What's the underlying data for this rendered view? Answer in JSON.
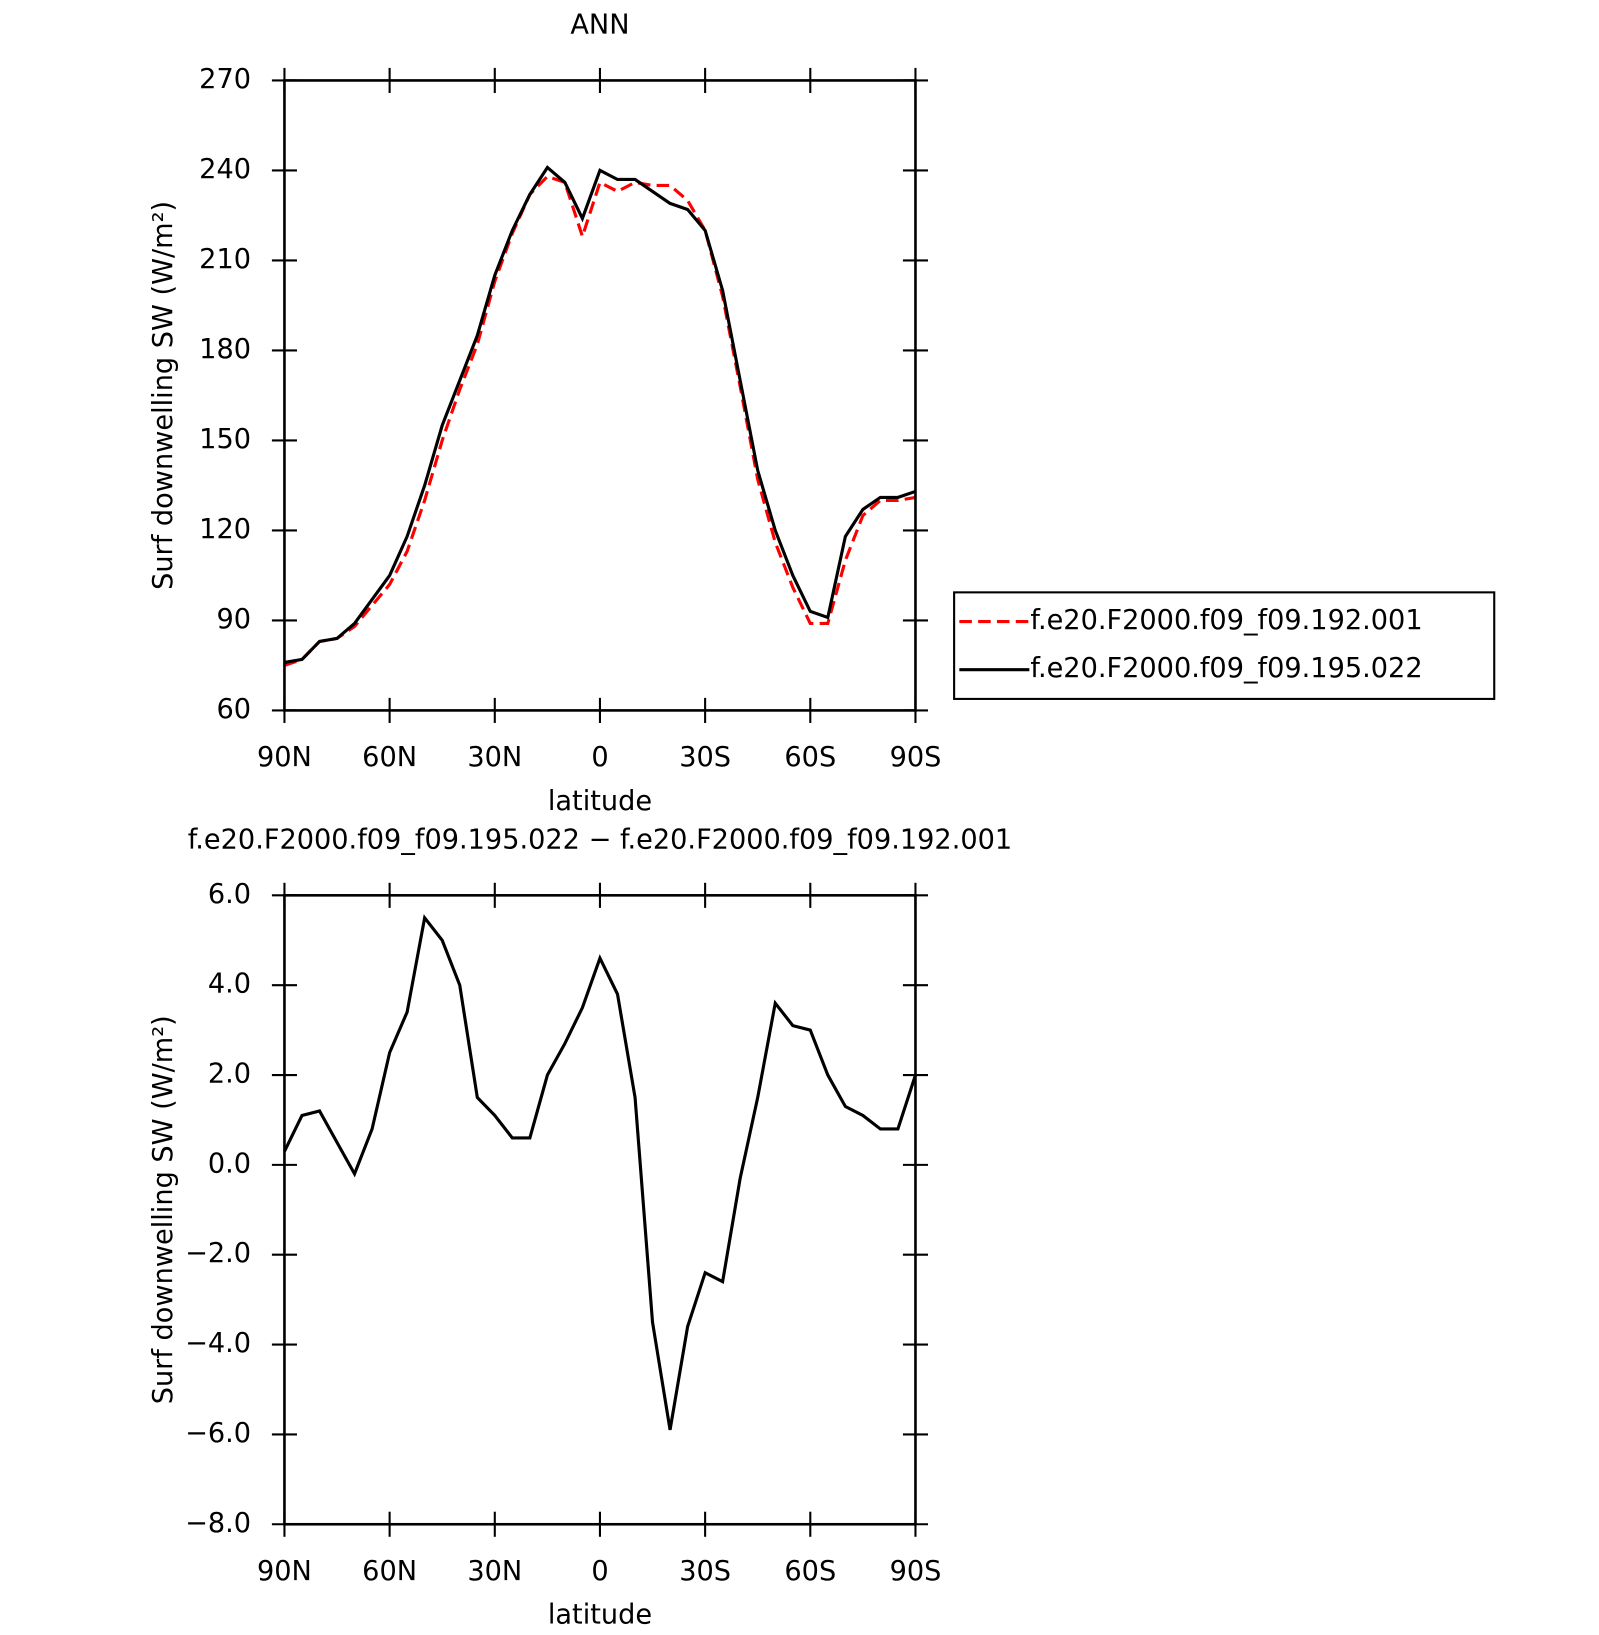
{
  "chart_data": [
    {
      "type": "line",
      "title": "ANN",
      "xlabel": "latitude",
      "ylabel": "Surf downwelling SW (W/m²)",
      "x": [
        90,
        85,
        80,
        75,
        70,
        65,
        60,
        55,
        50,
        45,
        40,
        35,
        30,
        25,
        20,
        15,
        10,
        5,
        0,
        -5,
        -10,
        -15,
        -20,
        -25,
        -30,
        -35,
        -40,
        -45,
        -50,
        -55,
        -60,
        -65,
        -70,
        -75,
        -80,
        -85,
        -90
      ],
      "series": [
        {
          "name": "f.e20.F2000.f09_f09.192.001",
          "color": "#ff0000",
          "dash": true,
          "values": [
            75,
            77,
            83,
            84,
            88,
            95,
            102,
            113,
            130,
            150,
            167,
            182,
            203,
            219,
            232,
            238,
            236,
            218,
            236,
            233,
            236,
            235,
            235,
            230,
            220,
            198,
            168,
            137,
            116,
            101,
            89,
            89,
            110,
            125,
            130,
            130,
            131
          ]
        },
        {
          "name": "f.e20.F2000.f09_f09.195.022",
          "color": "#000000",
          "dash": false,
          "values": [
            76,
            77,
            83,
            84,
            89,
            97,
            105,
            118,
            135,
            155,
            170,
            185,
            205,
            220,
            232,
            241,
            236,
            224,
            240,
            237,
            237,
            233,
            229,
            227,
            220,
            200,
            170,
            140,
            120,
            105,
            93,
            91,
            118,
            127,
            131,
            131,
            133
          ]
        }
      ],
      "xlim": [
        90,
        -90
      ],
      "xticks": [
        {
          "value": 90,
          "label": "90N"
        },
        {
          "value": 60,
          "label": "60N"
        },
        {
          "value": 30,
          "label": "30N"
        },
        0,
        {
          "value": -30,
          "label": "30S"
        },
        {
          "value": -60,
          "label": "60S"
        },
        {
          "value": -90,
          "label": "90S"
        }
      ],
      "ylim": [
        60,
        270
      ],
      "yticks": [
        60,
        90,
        120,
        150,
        180,
        210,
        240,
        270
      ],
      "legend": "right"
    },
    {
      "type": "line",
      "title": "f.e20.F2000.f09_f09.195.022 − f.e20.F2000.f09_f09.192.001",
      "xlabel": "latitude",
      "ylabel": "Surf downwelling SW (W/m²)",
      "x": [
        90,
        85,
        80,
        75,
        70,
        65,
        60,
        55,
        50,
        45,
        40,
        35,
        30,
        25,
        20,
        15,
        10,
        5,
        0,
        -5,
        -10,
        -15,
        -20,
        -25,
        -30,
        -35,
        -40,
        -45,
        -50,
        -55,
        -60,
        -65,
        -70,
        -75,
        -80,
        -85,
        -90
      ],
      "series": [
        {
          "color": "#000000",
          "dash": false,
          "values": [
            0.3,
            1.1,
            1.2,
            0.5,
            -0.2,
            0.8,
            2.5,
            3.4,
            5.5,
            5.0,
            4.0,
            1.5,
            1.1,
            0.6,
            0.6,
            2.0,
            2.7,
            3.5,
            4.6,
            3.8,
            1.5,
            -3.5,
            -5.9,
            -3.6,
            -2.4,
            -2.6,
            -0.3,
            1.5,
            3.6,
            3.1,
            3.0,
            2.0,
            1.3,
            1.1,
            0.8,
            0.8,
            2.0
          ]
        }
      ],
      "xlim": [
        90,
        -90
      ],
      "xticks": [
        {
          "value": 90,
          "label": "90N"
        },
        {
          "value": 60,
          "label": "60N"
        },
        {
          "value": 30,
          "label": "30N"
        },
        0,
        {
          "value": -30,
          "label": "30S"
        },
        {
          "value": -60,
          "label": "60S"
        },
        {
          "value": -90,
          "label": "90S"
        }
      ],
      "ylim": [
        -8,
        6
      ],
      "yticks": [
        {
          "value": -8,
          "label": "−8.0"
        },
        {
          "value": -6,
          "label": "−6.0"
        },
        {
          "value": -4,
          "label": "−4.0"
        },
        {
          "value": -2,
          "label": "−2.0"
        },
        {
          "value": 0,
          "label": "0.0"
        },
        {
          "value": 2,
          "label": "2.0"
        },
        {
          "value": 4,
          "label": "4.0"
        },
        {
          "value": 6,
          "label": "6.0"
        }
      ]
    }
  ]
}
